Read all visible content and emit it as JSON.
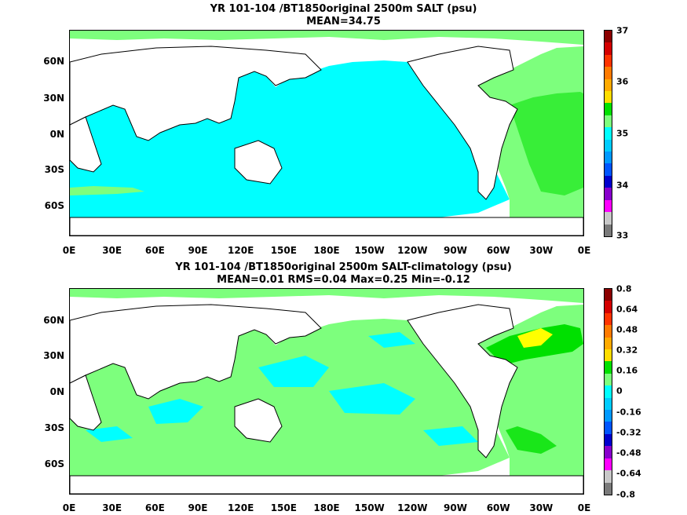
{
  "panel_top": {
    "title_line1": "YR 101-104 /BT1850original 2500m SALT (psu)",
    "title_line2": "MEAN=34.75",
    "lat_labels": [
      "60N",
      "30N",
      "0N",
      "30S",
      "60S"
    ],
    "lon_labels": [
      "0E",
      "30E",
      "60E",
      "90E",
      "120E",
      "150E",
      "180E",
      "150W",
      "120W",
      "90W",
      "60W",
      "30W",
      "0E"
    ],
    "colorbar_labels": [
      "37",
      "36",
      "35",
      "34",
      "33"
    ],
    "colorbar_colors": [
      "#8b0000",
      "#d40000",
      "#ff3300",
      "#ff7a00",
      "#ffaa00",
      "#ffdd00",
      "#00e000",
      "#7dff7d",
      "#00ffff",
      "#00ccff",
      "#0099ff",
      "#0055ff",
      "#0000cc",
      "#8800cc",
      "#ff00ff",
      "#c8c8c8",
      "#7a7a7a"
    ],
    "colors": {
      "ocean_main": "#00ffff",
      "atlantic": "#7dff7d",
      "atlantic_core": "#00e000"
    }
  },
  "panel_bottom": {
    "title_line1": "YR 101-104 /BT1850original 2500m SALT-climatology (psu)",
    "title_line2": "MEAN=0.01   RMS=0.04   Max=0.25   Min=-0.12",
    "lat_labels": [
      "60N",
      "30N",
      "0N",
      "30S",
      "60S"
    ],
    "lon_labels": [
      "0E",
      "30E",
      "60E",
      "90E",
      "120E",
      "150E",
      "180E",
      "150W",
      "120W",
      "90W",
      "60W",
      "30W",
      "0E"
    ],
    "colorbar_labels": [
      "0.8",
      "0.64",
      "0.48",
      "0.32",
      "0.16",
      "0",
      "-0.16",
      "-0.32",
      "-0.48",
      "-0.64",
      "-0.8"
    ],
    "colorbar_colors": [
      "#8b0000",
      "#d40000",
      "#ff3300",
      "#ff7a00",
      "#ffaa00",
      "#ffdd00",
      "#00e000",
      "#7dff7d",
      "#00ffff",
      "#00ccff",
      "#0099ff",
      "#0055ff",
      "#0000cc",
      "#8800cc",
      "#ff00ff",
      "#c8c8c8",
      "#7a7a7a"
    ],
    "colors": {
      "ocean_main": "#7dff7d",
      "near_zero": "#00ffff",
      "positive": "#00e000",
      "max_patch": "#ffff00"
    }
  }
}
